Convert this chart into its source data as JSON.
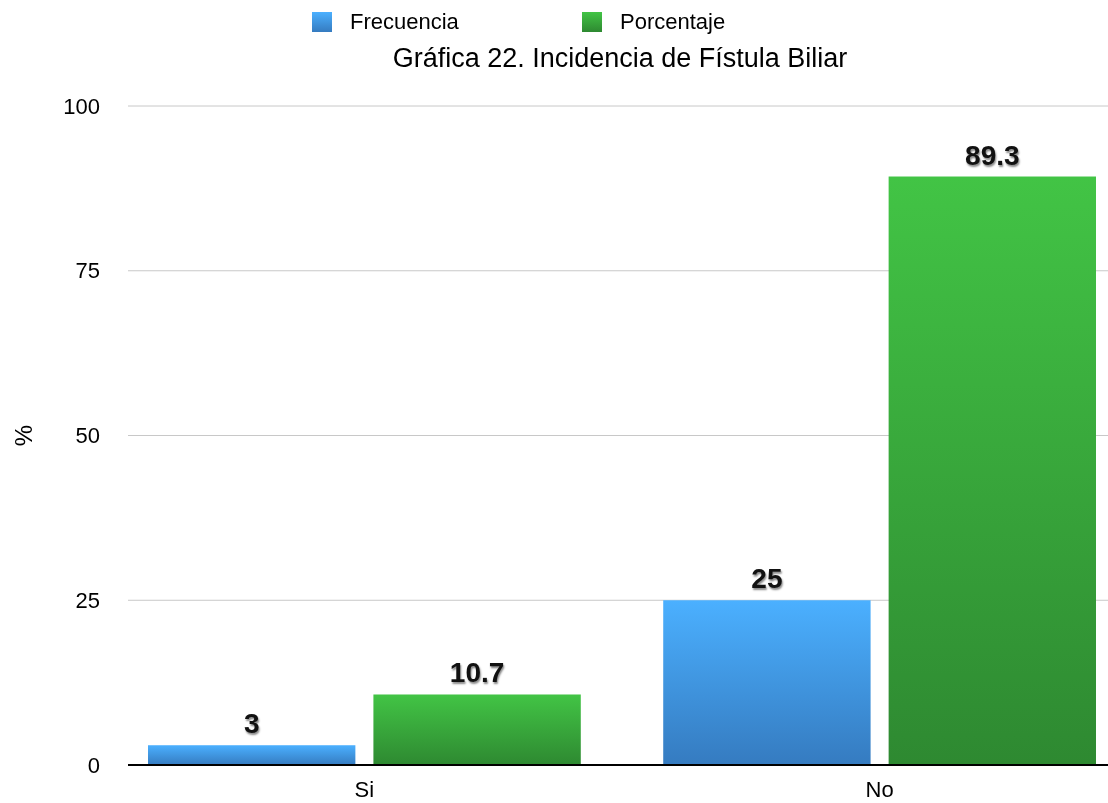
{
  "chart_data": {
    "type": "bar",
    "title": "Gráfica 22. Incidencia de Fístula Biliar",
    "ylabel": "%",
    "categories": [
      "Si",
      "No"
    ],
    "series": [
      {
        "name": "Frecuencia",
        "color": "#3f93e6",
        "values": [
          3,
          25
        ]
      },
      {
        "name": "Porcentaje",
        "color": "#37a43a",
        "values": [
          10.7,
          89.3
        ]
      }
    ],
    "ylim": [
      0,
      100
    ],
    "yticks": [
      0,
      25,
      50,
      75,
      100
    ],
    "grid": "y",
    "legend": "top",
    "data_labels": true
  }
}
